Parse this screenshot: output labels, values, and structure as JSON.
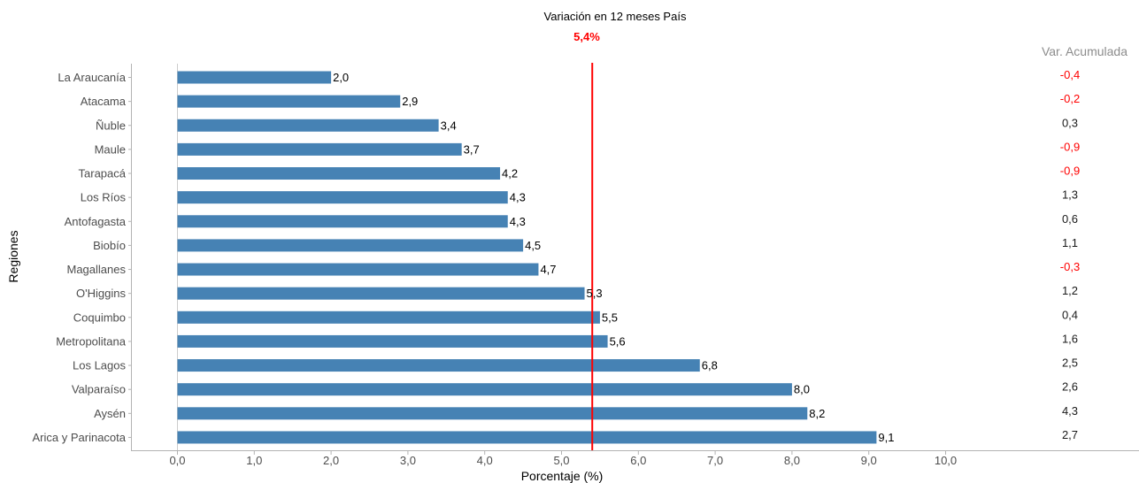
{
  "chart_data": {
    "type": "bar",
    "orientation": "horizontal",
    "title": "Variación en 12 meses País",
    "subtitle": "5,4%",
    "xlabel": "Porcentaje (%)",
    "ylabel": "Regiones",
    "reference_line": {
      "value": 5.4
    },
    "xlim": [
      0,
      10
    ],
    "x_ticks": [
      0,
      1,
      2,
      3,
      4,
      5,
      6,
      7,
      8,
      9,
      10
    ],
    "x_tick_labels": [
      "0,0",
      "1,0",
      "2,0",
      "3,0",
      "4,0",
      "5,0",
      "6,0",
      "7,0",
      "8,0",
      "9,0",
      "10,0"
    ],
    "side_column_title": "Var. Acumulada",
    "categories": [
      "La Araucanía",
      "Atacama",
      "Ñuble",
      "Maule",
      "Tarapacá",
      "Los Ríos",
      "Antofagasta",
      "Biobío",
      "Magallanes",
      "O'Higgins",
      "Coquimbo",
      "Metropolitana",
      "Los Lagos",
      "Valparaíso",
      "Aysén",
      "Arica y Parinacota"
    ],
    "values": [
      2.0,
      2.9,
      3.4,
      3.7,
      4.2,
      4.3,
      4.3,
      4.5,
      4.7,
      5.3,
      5.5,
      5.6,
      6.8,
      8.0,
      8.2,
      9.1
    ],
    "value_labels": [
      "2,0",
      "2,9",
      "3,4",
      "3,7",
      "4,2",
      "4,3",
      "4,3",
      "4,5",
      "4,7",
      "5,3",
      "5,5",
      "5,6",
      "6,8",
      "8,0",
      "8,2",
      "9,1"
    ],
    "var_acumulada": [
      -0.4,
      -0.2,
      0.3,
      -0.9,
      -0.9,
      1.3,
      0.6,
      1.1,
      -0.3,
      1.2,
      0.4,
      1.6,
      2.5,
      2.6,
      4.3,
      2.7
    ],
    "var_acumulada_labels": [
      "-0,4",
      "-0,2",
      "0,3",
      "-0,9",
      "-0,9",
      "1,3",
      "0,6",
      "1,1",
      "-0,3",
      "1,2",
      "0,4",
      "1,6",
      "2,5",
      "2,6",
      "4,3",
      "2,7"
    ],
    "grid": false,
    "legend": "none"
  },
  "colors": {
    "bar": "#4682b4",
    "reference_line": "#ff0000",
    "negative_text": "#ff0000",
    "positive_text": "#1a1a1a",
    "axis": "#b3b3b3",
    "side_title": "#8c8c8c"
  }
}
